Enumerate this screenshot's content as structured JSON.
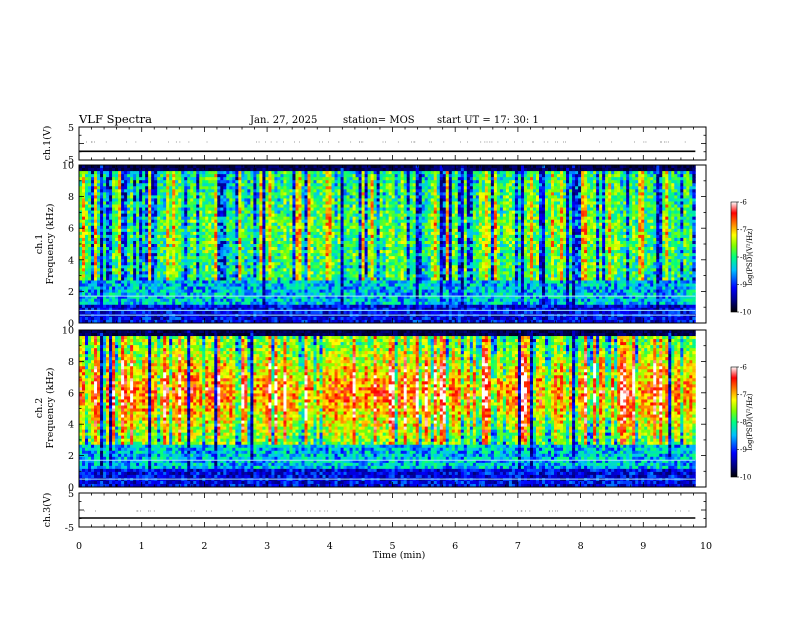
{
  "header": {
    "title": "VLF Spectra",
    "date": "Jan. 27, 2025",
    "station": "station= MOS",
    "start_ut": "start  UT =   17: 30: 1"
  },
  "chart_data": [
    {
      "type": "line",
      "panel": "ch1-waveform",
      "ylabel": "ch.1(V)",
      "ylim": [
        -5,
        5
      ],
      "yticks": [
        5,
        -5
      ],
      "xlim": [
        0,
        10
      ],
      "series": [
        {
          "values": [
            -2.0,
            -2.0
          ]
        }
      ],
      "line_color": "#000000"
    },
    {
      "type": "heatmap",
      "panel": "ch1-spectrogram",
      "ylabel": "ch.1 Frequency (kHz)",
      "ylim": [
        0,
        10
      ],
      "yticks": [
        "0",
        "2",
        "4",
        "6",
        "8",
        "10"
      ],
      "xlim": [
        0,
        9.83
      ],
      "colorbar": {
        "label": "log(PSD)(V²/Hz)",
        "range": [
          -10,
          -6
        ],
        "ticks": [
          "-6",
          "-7",
          "-8",
          "-9",
          "-10"
        ]
      },
      "constant_lines_khz": [
        0.5,
        0.8,
        1.7
      ],
      "dominant_log_psd": -8.5,
      "peak_band_khz": [
        2,
        9.5
      ]
    },
    {
      "type": "heatmap",
      "panel": "ch2-spectrogram",
      "ylabel": "ch.2 Frequency (kHz)",
      "ylim": [
        0,
        10
      ],
      "yticks": [
        "0",
        "2",
        "4",
        "6",
        "8",
        "10"
      ],
      "xlim": [
        0,
        9.83
      ],
      "colorbar": {
        "label": "log(PSD)(V²/Hz)",
        "range": [
          -10,
          -6
        ],
        "ticks": [
          "-6",
          "-7",
          "-8",
          "-9",
          "-10"
        ]
      },
      "constant_lines_khz": [
        0.5,
        1.7
      ],
      "dominant_log_psd": -7.5,
      "peak_band_khz": [
        4.5,
        7.5
      ]
    },
    {
      "type": "line",
      "panel": "ch3-waveform",
      "ylabel": "ch.3(V)",
      "ylim": [
        -5,
        5
      ],
      "yticks": [
        5,
        -5
      ],
      "xlim": [
        0,
        10
      ],
      "series": [
        {
          "values": [
            -2.0,
            -2.0
          ]
        }
      ],
      "line_color": "#000000"
    }
  ],
  "x_axis": {
    "label": "Time  (min)",
    "ticks": [
      "0",
      "1",
      "2",
      "3",
      "4",
      "5",
      "6",
      "7",
      "8",
      "9",
      "10"
    ],
    "range": [
      0,
      10
    ]
  },
  "colormap": [
    "#000000",
    "#00007f",
    "#0000ff",
    "#00bfff",
    "#00ff7f",
    "#7fff00",
    "#ffff00",
    "#ff7f00",
    "#ff0000",
    "#ffffff"
  ]
}
